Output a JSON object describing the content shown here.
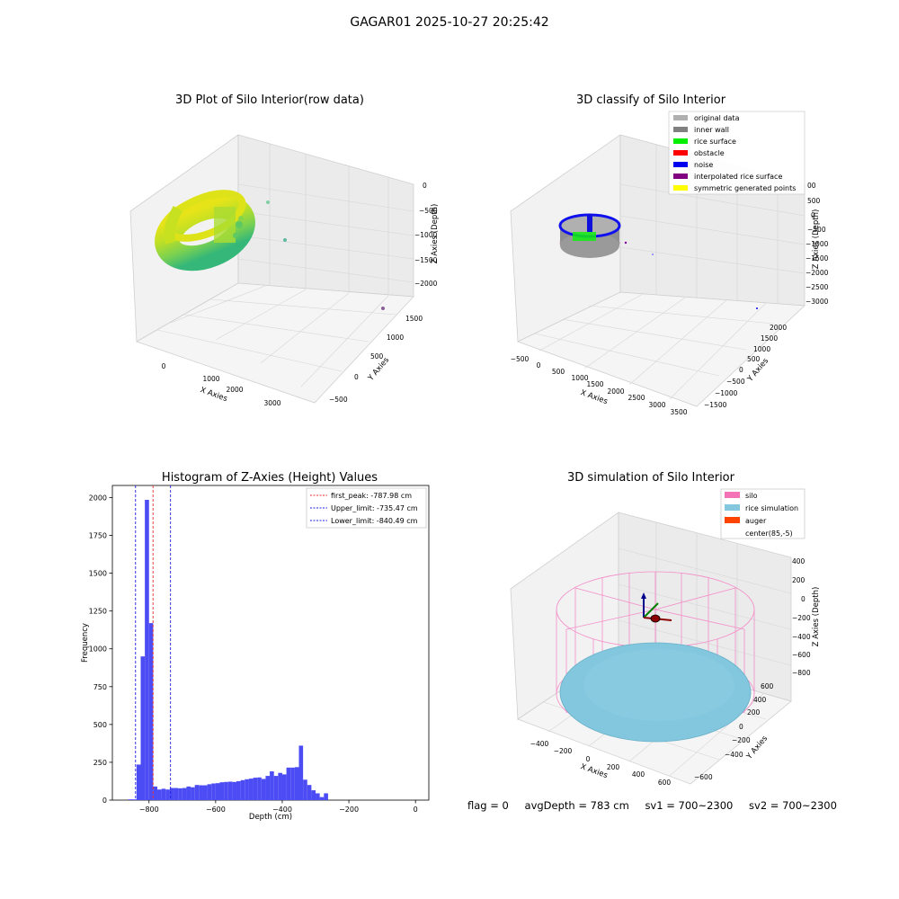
{
  "suptitle": "GAGAR01 2025-10-27 20:25:42",
  "footer": {
    "flag": "flag = 0",
    "avg_depth": "avgDepth = 783 cm",
    "sv1": "sv1 = 700~2300",
    "sv2": "sv2 = 700~2300"
  },
  "colors": {
    "hist_bar": "#4c4cf5",
    "first_peak_line": "#e83030",
    "limit_line": "#2020e0",
    "silo_pink": "#f48cc7",
    "rice_blue": "#82c7de",
    "auger_orange": "#ff4400"
  },
  "chart_data": [
    {
      "type": "scatter3d",
      "title": "3D Plot of Silo Interior(row data)",
      "xlabel": "X Axies",
      "ylabel": "Y Axies",
      "zlabel": "Z Axies (Depth)",
      "x_ticks": [
        "0",
        "1000",
        "2000",
        "3000"
      ],
      "y_ticks": [
        "−500",
        "0",
        "500",
        "1000",
        "1500"
      ],
      "z_ticks": [
        "0",
        "−500",
        "−1000",
        "−1500",
        "−2000"
      ],
      "colormap": "viridis"
    },
    {
      "type": "scatter3d",
      "title": "3D classify of Silo Interior",
      "xlabel": "X Axies",
      "ylabel": "Y Axies",
      "zlabel": "Z Axies (Depth)",
      "x_ticks": [
        "−500",
        "0",
        "500",
        "1000",
        "1500",
        "2000",
        "2500",
        "3000",
        "3500"
      ],
      "y_ticks": [
        "−1500",
        "−1000",
        "−500",
        "0",
        "500",
        "1000",
        "1500",
        "2000"
      ],
      "z_ticks": [
        "500",
        "0",
        "−500",
        "−1000",
        "−1500",
        "−2000",
        "−2500",
        "−3000"
      ],
      "z_top_partial": "00",
      "legend": [
        {
          "label": "original data",
          "color": "#b0b0b0"
        },
        {
          "label": "inner wall",
          "color": "#808080"
        },
        {
          "label": "rice surface",
          "color": "#00ee00"
        },
        {
          "label": "obstacle",
          "color": "#ff0000"
        },
        {
          "label": "noise",
          "color": "#0000ee"
        },
        {
          "label": "interpolated rice surface",
          "color": "#800080"
        },
        {
          "label": "symmetric generated points",
          "color": "#ffff00"
        }
      ]
    },
    {
      "type": "bar",
      "title": "Histogram of Z-Axies (Height) Values",
      "xlabel": "Depth (cm)",
      "ylabel": "Frequency",
      "x_ticks": [
        "−800",
        "−600",
        "−400",
        "−200",
        "0"
      ],
      "y_ticks": [
        "0",
        "250",
        "500",
        "750",
        "1000",
        "1250",
        "1500",
        "1750",
        "2000"
      ],
      "xlim": [
        -910,
        40
      ],
      "ylim": [
        0,
        2080
      ],
      "bin_width": 12.5,
      "bins": [
        [
          -862.5,
          5
        ],
        [
          -850,
          5
        ],
        [
          -837.5,
          235
        ],
        [
          -825,
          950
        ],
        [
          -812.5,
          1985
        ],
        [
          -800,
          1170
        ],
        [
          -787.5,
          90
        ],
        [
          -775,
          70
        ],
        [
          -762.5,
          75
        ],
        [
          -750,
          70
        ],
        [
          -737.5,
          80
        ],
        [
          -725,
          80
        ],
        [
          -712.5,
          78
        ],
        [
          -700,
          80
        ],
        [
          -687.5,
          90
        ],
        [
          -675,
          85
        ],
        [
          -662.5,
          100
        ],
        [
          -650,
          98
        ],
        [
          -637.5,
          98
        ],
        [
          -625,
          105
        ],
        [
          -612.5,
          110
        ],
        [
          -600,
          112
        ],
        [
          -587.5,
          118
        ],
        [
          -575,
          120
        ],
        [
          -562.5,
          122
        ],
        [
          -550,
          120
        ],
        [
          -537.5,
          125
        ],
        [
          -525,
          132
        ],
        [
          -512.5,
          138
        ],
        [
          -500,
          142
        ],
        [
          -487.5,
          148
        ],
        [
          -475,
          150
        ],
        [
          -462.5,
          140
        ],
        [
          -450,
          160
        ],
        [
          -437.5,
          190
        ],
        [
          -425,
          160
        ],
        [
          -412.5,
          180
        ],
        [
          -400,
          170
        ],
        [
          -387.5,
          215
        ],
        [
          -375,
          215
        ],
        [
          -362.5,
          218
        ],
        [
          -350,
          360
        ],
        [
          -337.5,
          135
        ],
        [
          -325,
          100
        ],
        [
          -312.5,
          65
        ],
        [
          -300,
          45
        ],
        [
          -287.5,
          20
        ],
        [
          -275,
          45
        ]
      ],
      "vlines": [
        {
          "x": -787.98,
          "label": "first_peak: -787.98 cm",
          "color": "#e83030"
        },
        {
          "x": -735.47,
          "label": "Upper_limit: -735.47 cm",
          "color": "#2020e0"
        },
        {
          "x": -840.49,
          "label": "Lower_limit: -840.49 cm",
          "color": "#2020e0"
        }
      ]
    },
    {
      "type": "surface3d",
      "title": "3D simulation of Silo Interior",
      "xlabel": "X Axies",
      "ylabel": "Y Axies",
      "zlabel": "Z Axies (Depth)",
      "x_ticks": [
        "−400",
        "−200",
        "0",
        "200",
        "400",
        "600"
      ],
      "y_ticks": [
        "−600",
        "−400",
        "−200",
        "0",
        "200",
        "400",
        "600"
      ],
      "z_ticks": [
        "400",
        "200",
        "0",
        "−200",
        "−400",
        "−600",
        "−800"
      ],
      "legend": [
        {
          "label": "silo",
          "color": "#f472b6"
        },
        {
          "label": "rice simulation",
          "color": "#82c7de"
        },
        {
          "label": "auger",
          "color": "#ff4400"
        },
        {
          "label": "center(85,-5)",
          "color": ""
        }
      ]
    }
  ]
}
